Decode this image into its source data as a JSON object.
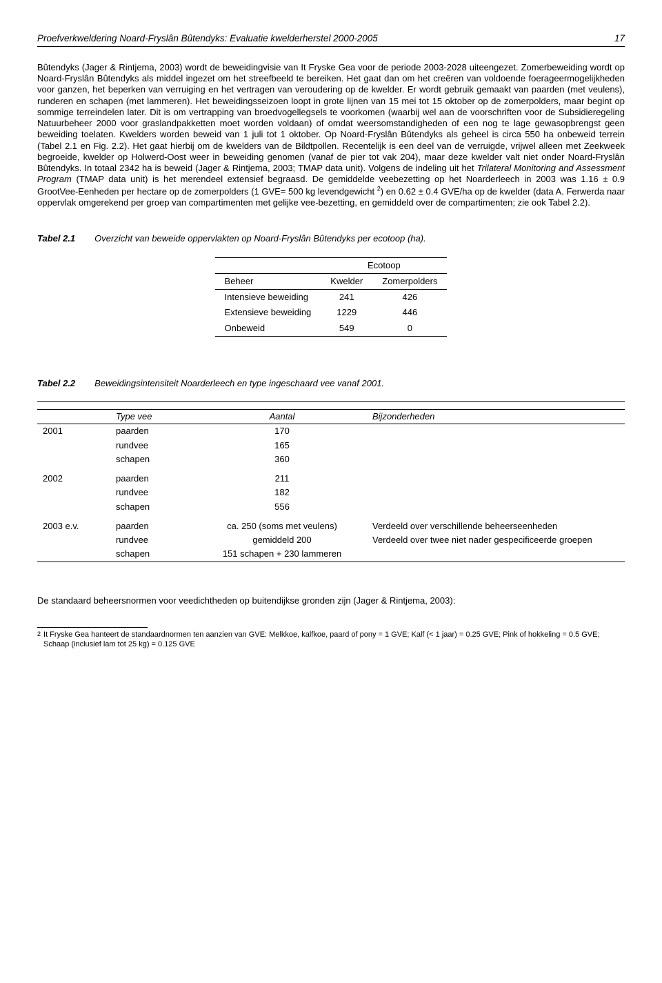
{
  "header": {
    "title": "Proefverkweldering Noard-Fryslân Bûtendyks: Evaluatie kwelderherstel 2000-2005",
    "page_number": "17"
  },
  "body": {
    "paragraph": "Bûtendyks (Jager & Rintjema, 2003) wordt de beweidingvisie van It Fryske Gea voor de periode 2003-2028 uiteengezet.\nZomerbeweiding wordt op Noard-Fryslân Bûtendyks als middel ingezet om het streefbeeld te bereiken. Het gaat dan om het creëren van voldoende foerageermogelijkheden voor ganzen, het beperken van verruiging en het vertragen van veroudering op de kwelder. Er wordt gebruik gemaakt van paarden (met veulens), runderen en schapen (met lammeren). Het beweidingsseizoen loopt in grote lijnen van 15 mei tot 15 oktober op de zomerpolders, maar begint op sommige terreindelen later. Dit is om vertrapping van broedvogellegsels te voorkomen (waarbij wel aan de voorschriften voor de Subsidieregeling Natuurbeheer 2000 voor graslandpakketten moet worden voldaan) of omdat weersomstandigheden of een nog te lage gewasopbrengst geen beweiding toelaten. Kwelders worden beweid van 1 juli tot 1 oktober. Op Noard-Fryslân Bûtendyks als geheel is circa 550 ha onbeweid terrein (Tabel 2.1 en Fig. 2.2). Het gaat hierbij om de kwelders van de Bildtpollen. Recentelijk is een deel van de verruigde, vrijwel alleen met Zeekweek begroeide, kwelder op Holwerd-Oost weer in beweiding genomen (vanaf de pier tot vak 204), maar deze kwelder valt niet onder Noard-Fryslân Bûtendyks. In totaal 2342 ha is beweid (Jager & Rintjema, 2003; TMAP data unit). Volgens de indeling uit het Trilateral Monitoring and Assessment Program (TMAP data unit) is het merendeel extensief begraasd. De gemiddelde veebezetting op het Noarderleech in 2003 was 1.16 ± 0.9 GrootVee-Eenheden per hectare op de zomerpolders (1 GVE= 500 kg levendgewicht 2) en 0.62 ± 0.4 GVE/ha op de kwelder (data A. Ferwerda naar oppervlak omgerekend per groep van compartimenten met gelijke vee-bezetting, en gemiddeld over de compartimenten; zie ook Tabel 2.2)."
  },
  "table1": {
    "label": "Tabel 2.1",
    "caption": "Overzicht van beweide oppervlakten op Noard-Fryslân Bûtendyks per ecotoop (ha).",
    "group_header": "Ecotoop",
    "col_headers": [
      "Beheer",
      "Kwelder",
      "Zomerpolders"
    ],
    "rows": [
      [
        "Intensieve beweiding",
        "241",
        "426"
      ],
      [
        "Extensieve beweiding",
        "1229",
        "446"
      ],
      [
        "Onbeweid",
        "549",
        "0"
      ]
    ]
  },
  "table2": {
    "label": "Tabel 2.2",
    "caption": "Beweidingsintensiteit Noarderleech en type ingeschaard vee vanaf 2001.",
    "col_headers": [
      "",
      "Type vee",
      "Aantal",
      "Bijzonderheden"
    ],
    "sections": [
      {
        "year": "2001",
        "rows": [
          [
            "paarden",
            "170",
            ""
          ],
          [
            "rundvee",
            "165",
            ""
          ],
          [
            "schapen",
            "360",
            ""
          ]
        ]
      },
      {
        "year": "2002",
        "rows": [
          [
            "paarden",
            "211",
            ""
          ],
          [
            "rundvee",
            "182",
            ""
          ],
          [
            "schapen",
            "556",
            ""
          ]
        ]
      },
      {
        "year": "2003 e.v.",
        "rows": [
          [
            "paarden",
            "ca. 250 (soms met veulens)",
            "Verdeeld over verschillende beheerseenheden"
          ],
          [
            "rundvee",
            "gemiddeld 200",
            "Verdeeld over twee niet nader gespecificeerde groepen"
          ],
          [
            "schapen",
            "151 schapen + 230 lammeren",
            ""
          ]
        ]
      }
    ]
  },
  "closing": "De standaard beheersnormen voor veedichtheden op buitendijkse gronden zijn (Jager & Rintjema, 2003):",
  "footnote": {
    "num": "2",
    "text": "It Fryske Gea hanteert de standaardnormen ten aanzien van GVE: Melkkoe, kalfkoe, paard of pony = 1 GVE; Kalf (< 1 jaar) = 0.25 GVE; Pink of hokkeling = 0.5 GVE; Schaap (inclusief lam tot 25 kg) = 0.125 GVE"
  }
}
